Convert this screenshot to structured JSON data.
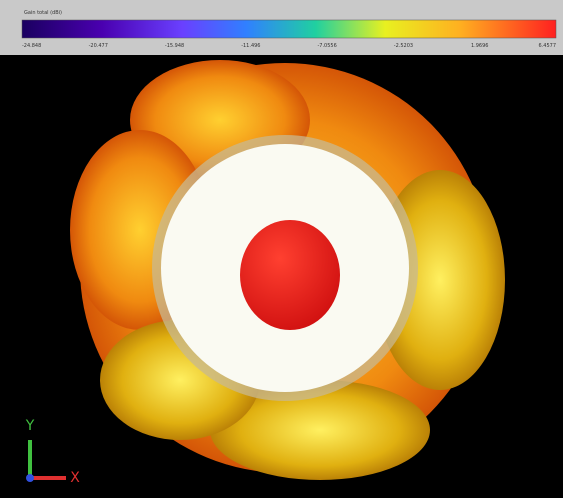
{
  "colorbar": {
    "title": "Gain total (dBi)",
    "tick_labels": [
      "-24.848",
      "-20.477",
      "-15.948",
      "-11.496",
      "-7.0556",
      "-2.5203",
      "1.9696",
      "6.4577"
    ]
  },
  "axes": {
    "y_label": "Y",
    "x_label": "X"
  }
}
